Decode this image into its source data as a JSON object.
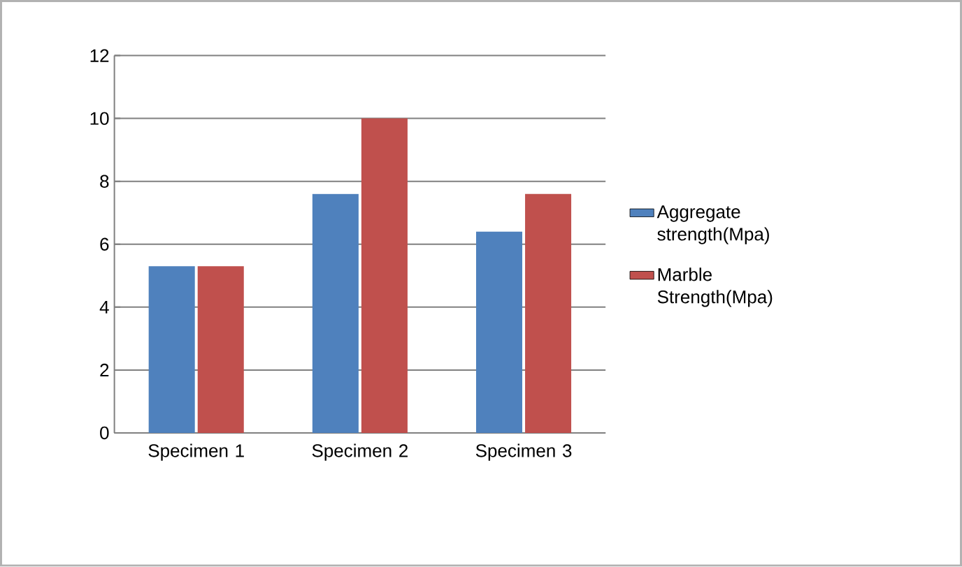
{
  "chart_data": {
    "type": "bar",
    "categories": [
      "Specimen 1",
      "Specimen 2",
      "Specimen 3"
    ],
    "series": [
      {
        "name": "Aggregate strength(Mpa)",
        "color": "#4f81bd",
        "values": [
          5.3,
          7.6,
          6.4
        ]
      },
      {
        "name": "Marble Strength(Mpa)",
        "color": "#c0504d",
        "values": [
          5.3,
          10,
          7.6
        ]
      }
    ],
    "ylim": [
      0,
      12
    ],
    "yticks": [
      0,
      2,
      4,
      6,
      8,
      10,
      12
    ],
    "grid": "y",
    "legend": "right"
  }
}
